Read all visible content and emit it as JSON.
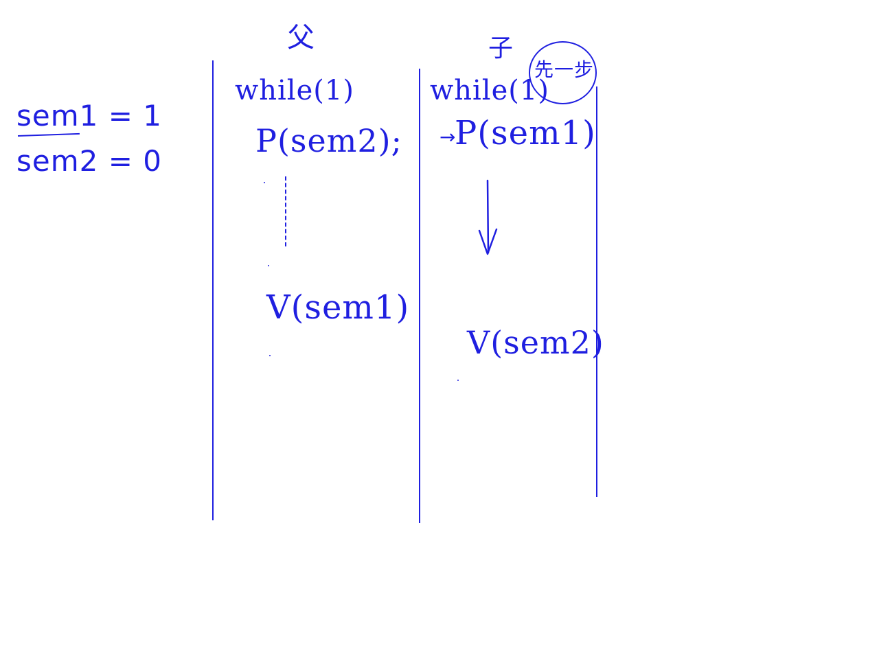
{
  "variables": {
    "sem1_line": "sem1 = 1",
    "sem2_line": "sem2 = 0"
  },
  "parent_column": {
    "header": "父",
    "while_line": "while(1)",
    "wait_line": "P(sem2);",
    "signal_line": "V(sem1)"
  },
  "child_column": {
    "header": "子",
    "badge": "先一步",
    "while_line": "while(1)",
    "wait_line": "P(sem1)",
    "signal_line": "V(sem2)"
  },
  "colors": {
    "ink": "#1f1fe0",
    "background": "#ffffff"
  }
}
